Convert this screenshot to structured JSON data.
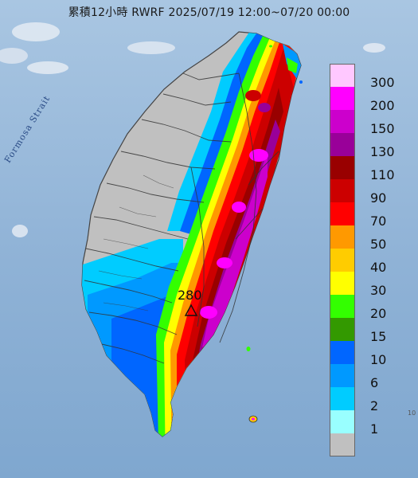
{
  "header": {
    "title": "累積12小時 RWRF 2025/07/19 12:00~07/20 00:00"
  },
  "map": {
    "strait_label": "Formosa Strait",
    "max_marker_value": "280",
    "edge_label": "10"
  },
  "legend": {
    "items": [
      {
        "label": "300",
        "color": "#ffc8ff"
      },
      {
        "label": "200",
        "color": "#ff00ff"
      },
      {
        "label": "150",
        "color": "#cc00cc"
      },
      {
        "label": "130",
        "color": "#990099"
      },
      {
        "label": "110",
        "color": "#990000"
      },
      {
        "label": "90",
        "color": "#cc0000"
      },
      {
        "label": "70",
        "color": "#ff0000"
      },
      {
        "label": "50",
        "color": "#ff9900"
      },
      {
        "label": "40",
        "color": "#ffcc00"
      },
      {
        "label": "30",
        "color": "#ffff00"
      },
      {
        "label": "20",
        "color": "#33ff00"
      },
      {
        "label": "15",
        "color": "#339900"
      },
      {
        "label": "10",
        "color": "#0066ff"
      },
      {
        "label": "6",
        "color": "#0099ff"
      },
      {
        "label": "2",
        "color": "#00ccff"
      },
      {
        "label": "1",
        "color": "#99ffff"
      },
      {
        "label": "",
        "color": "#c0c0c0"
      }
    ]
  }
}
